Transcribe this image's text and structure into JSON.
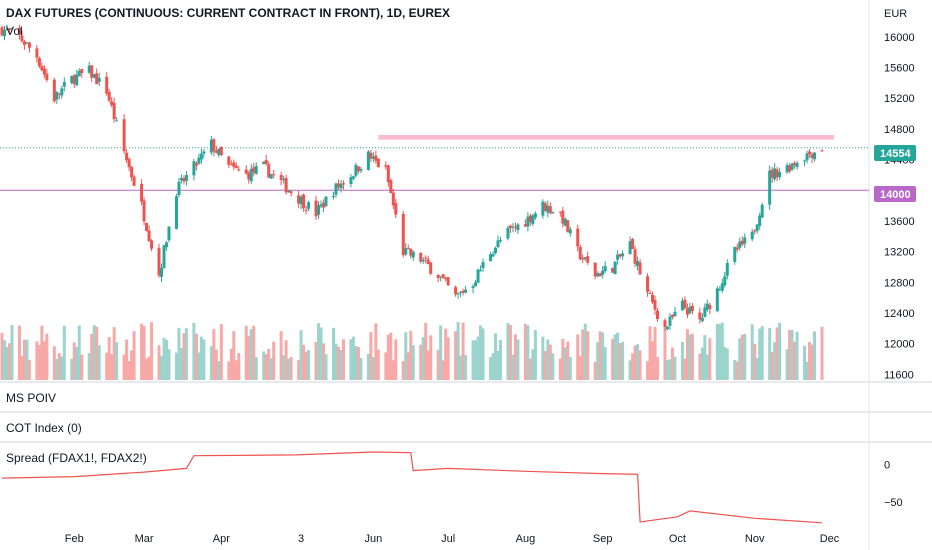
{
  "header": {
    "title": "DAX FUTURES (CONTINUOUS: CURRENT CONTRACT IN FRONT), 1D, EUREX",
    "vol_label": "Vol",
    "currency": "EUR"
  },
  "panes": {
    "ms_poiv": "MS POIV",
    "cot_index": "COT Index (0)",
    "spread": "Spread (FDAX1!, FDAX2!)"
  },
  "tags": {
    "last_price": "14554",
    "level": "14000"
  },
  "colors": {
    "up": "#26a69a",
    "down": "#ef5350",
    "vol_up": "#9bd3cd",
    "vol_down": "#f7a9a7",
    "resistance": "#f8bbd0",
    "level_line": "#ba68c8",
    "spread_line": "#ef5350"
  },
  "chart_data": [
    {
      "type": "candlestick",
      "title": "DAX FUTURES (CONTINUOUS: CURRENT CONTRACT IN FRONT), 1D, EUREX",
      "y_unit": "EUR",
      "y_ticks": [
        "16000",
        "15600",
        "15200",
        "14800",
        "14400",
        "14000",
        "13600",
        "13200",
        "12800",
        "12400",
        "12000",
        "11600"
      ],
      "ylim": [
        11500,
        16350
      ],
      "x_ticks": [
        "Feb",
        "Mar",
        "Apr",
        "3",
        "Jun",
        "Jul",
        "Aug",
        "Sep",
        "Oct",
        "Nov",
        "Dec"
      ],
      "price_series": [
        {
          "date": "2022-01-03",
          "close": 16100
        },
        {
          "date": "2022-01-10",
          "close": 16000
        },
        {
          "date": "2022-01-17",
          "close": 15750
        },
        {
          "date": "2022-01-24",
          "close": 15200
        },
        {
          "date": "2022-01-31",
          "close": 15450
        },
        {
          "date": "2022-02-07",
          "close": 15550
        },
        {
          "date": "2022-02-14",
          "close": 15300
        },
        {
          "date": "2022-02-21",
          "close": 14500
        },
        {
          "date": "2022-02-28",
          "close": 13800
        },
        {
          "date": "2022-03-07",
          "close": 12900
        },
        {
          "date": "2022-03-14",
          "close": 14000
        },
        {
          "date": "2022-03-21",
          "close": 14300
        },
        {
          "date": "2022-03-28",
          "close": 14600
        },
        {
          "date": "2022-04-04",
          "close": 14300
        },
        {
          "date": "2022-04-11",
          "close": 14200
        },
        {
          "date": "2022-04-18",
          "close": 14300
        },
        {
          "date": "2022-04-25",
          "close": 14100
        },
        {
          "date": "2022-05-02",
          "close": 13900
        },
        {
          "date": "2022-05-09",
          "close": 13700
        },
        {
          "date": "2022-05-16",
          "close": 14000
        },
        {
          "date": "2022-05-23",
          "close": 14200
        },
        {
          "date": "2022-05-30",
          "close": 14450
        },
        {
          "date": "2022-06-06",
          "close": 14250
        },
        {
          "date": "2022-06-13",
          "close": 13200
        },
        {
          "date": "2022-06-20",
          "close": 13100
        },
        {
          "date": "2022-06-27",
          "close": 12900
        },
        {
          "date": "2022-07-04",
          "close": 12600
        },
        {
          "date": "2022-07-11",
          "close": 12800
        },
        {
          "date": "2022-07-18",
          "close": 13200
        },
        {
          "date": "2022-07-25",
          "close": 13450
        },
        {
          "date": "2022-08-01",
          "close": 13600
        },
        {
          "date": "2022-08-08",
          "close": 13800
        },
        {
          "date": "2022-08-15",
          "close": 13700
        },
        {
          "date": "2022-08-22",
          "close": 13200
        },
        {
          "date": "2022-08-29",
          "close": 12900
        },
        {
          "date": "2022-09-05",
          "close": 13000
        },
        {
          "date": "2022-09-12",
          "close": 13300
        },
        {
          "date": "2022-09-19",
          "close": 12650
        },
        {
          "date": "2022-09-26",
          "close": 12200
        },
        {
          "date": "2022-10-03",
          "close": 12500
        },
        {
          "date": "2022-10-10",
          "close": 12300
        },
        {
          "date": "2022-10-17",
          "close": 12700
        },
        {
          "date": "2022-10-24",
          "close": 13200
        },
        {
          "date": "2022-10-31",
          "close": 13400
        },
        {
          "date": "2022-11-07",
          "close": 14200
        },
        {
          "date": "2022-11-14",
          "close": 14300
        },
        {
          "date": "2022-11-21",
          "close": 14450
        },
        {
          "date": "2022-11-28",
          "close": 14554
        }
      ],
      "last_price": 14554,
      "horizontal_level": 14000,
      "resistance_zone": [
        14660,
        14720
      ]
    },
    {
      "type": "line",
      "title": "Spread (FDAX1!, FDAX2!)",
      "y_ticks": [
        "0",
        "−50"
      ],
      "series": [
        {
          "x": "2022-01-03",
          "y": -18
        },
        {
          "x": "2022-02-01",
          "y": -16
        },
        {
          "x": "2022-03-01",
          "y": -10
        },
        {
          "x": "2022-03-18",
          "y": -5
        },
        {
          "x": "2022-03-21",
          "y": 12
        },
        {
          "x": "2022-05-01",
          "y": 13
        },
        {
          "x": "2022-06-01",
          "y": 17
        },
        {
          "x": "2022-06-16",
          "y": 16
        },
        {
          "x": "2022-06-17",
          "y": -8
        },
        {
          "x": "2022-07-01",
          "y": -5
        },
        {
          "x": "2022-08-01",
          "y": -9
        },
        {
          "x": "2022-09-01",
          "y": -12
        },
        {
          "x": "2022-09-15",
          "y": -13
        },
        {
          "x": "2022-09-16",
          "y": -77
        },
        {
          "x": "2022-10-01",
          "y": -70
        },
        {
          "x": "2022-10-06",
          "y": -62
        },
        {
          "x": "2022-11-01",
          "y": -72
        },
        {
          "x": "2022-11-28",
          "y": -78
        }
      ]
    }
  ]
}
